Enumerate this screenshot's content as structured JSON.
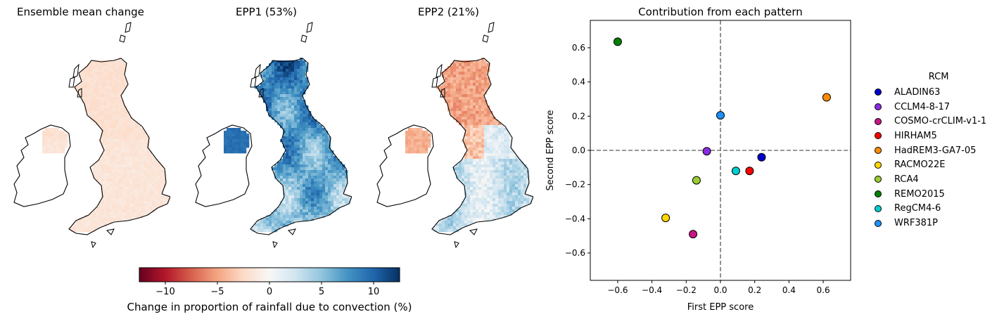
{
  "maps": [
    {
      "title": "Ensemble mean change",
      "pattern": "mean"
    },
    {
      "title": "EPP1 (53%)",
      "pattern": "epp1"
    },
    {
      "title": "EPP2 (21%)",
      "pattern": "epp2"
    }
  ],
  "colorbar": {
    "label": "Change in proportion of rainfall due to convection (%)",
    "ticks": [
      "−10",
      "−5",
      "0",
      "5",
      "10"
    ],
    "tick_values": [
      -10,
      -5,
      0,
      5,
      10
    ],
    "range": [
      -12.5,
      12.5
    ],
    "colormap": "RdBu",
    "colors": [
      "#67001f",
      "#b2182b",
      "#d6604d",
      "#f4a582",
      "#fddbc7",
      "#f7f7f7",
      "#d1e5f0",
      "#92c5de",
      "#4393c3",
      "#2166ac",
      "#053061"
    ]
  },
  "chart_data": {
    "type": "scatter",
    "title": "Contribution from each pattern",
    "xlabel": "First EPP score",
    "ylabel": "Second EPP score",
    "xlim": [
      -0.76,
      0.76
    ],
    "ylim": [
      -0.76,
      0.76
    ],
    "xticks": [
      "−0.6",
      "−0.4",
      "−0.2",
      "0.0",
      "0.2",
      "0.4",
      "0.6"
    ],
    "yticks": [
      "−0.6",
      "−0.4",
      "−0.2",
      "0.0",
      "0.2",
      "0.4",
      "0.6"
    ],
    "tick_values": [
      -0.6,
      -0.4,
      -0.2,
      0.0,
      0.2,
      0.4,
      0.6
    ],
    "reference_lines": {
      "x": 0,
      "y": 0,
      "style": "dashed"
    },
    "legend_title": "RCM",
    "legend_position": "right",
    "series": [
      {
        "name": "ALADIN63",
        "x": 0.24,
        "y": -0.04,
        "color": "#0000cd"
      },
      {
        "name": "CCLM4-8-17",
        "x": -0.08,
        "y": -0.005,
        "color": "#8a2be2"
      },
      {
        "name": "COSMO-crCLIM-v1-1",
        "x": -0.16,
        "y": -0.49,
        "color": "#c71585"
      },
      {
        "name": "HIRHAM5",
        "x": 0.17,
        "y": -0.12,
        "color": "#ff0000"
      },
      {
        "name": "HadREM3-GA7-05",
        "x": 0.62,
        "y": 0.31,
        "color": "#ff8c00"
      },
      {
        "name": "RACMO22E",
        "x": -0.32,
        "y": -0.395,
        "color": "#ffd700"
      },
      {
        "name": "RCA4",
        "x": -0.14,
        "y": -0.175,
        "color": "#9acd32"
      },
      {
        "name": "REMO2015",
        "x": -0.6,
        "y": 0.635,
        "color": "#008000"
      },
      {
        "name": "RegCM4-6",
        "x": 0.09,
        "y": -0.12,
        "color": "#00ced1"
      },
      {
        "name": "WRF381P",
        "x": 0.0,
        "y": 0.205,
        "color": "#1e90ff"
      }
    ]
  }
}
